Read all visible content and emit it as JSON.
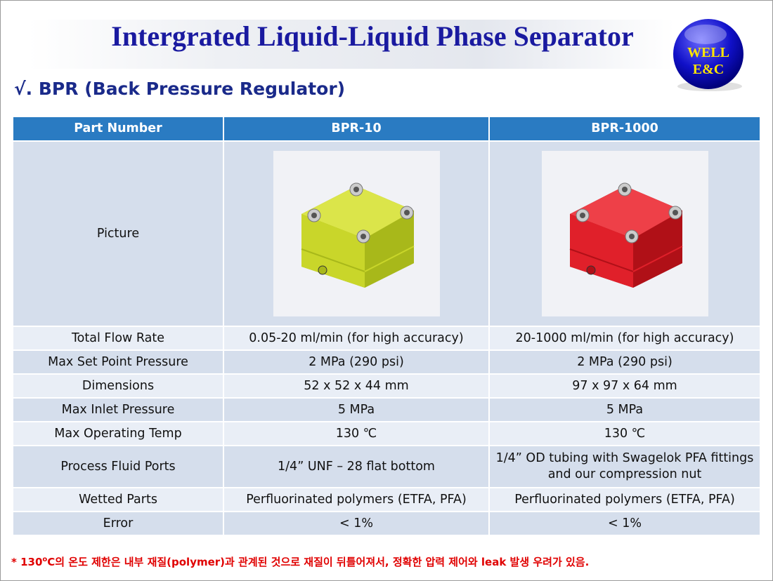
{
  "header": {
    "title": "Intergrated Liquid-Liquid Phase Separator",
    "logo": [
      "WELL",
      "E&C"
    ]
  },
  "subtitle": "√. BPR (Back Pressure Regulator)",
  "table": {
    "header": [
      "Part Number",
      "BPR-10",
      "BPR-1000"
    ],
    "picture_label": "Picture",
    "rows": [
      [
        "Total Flow Rate",
        "0.05-20 ml/min (for high accuracy)",
        "20-1000 ml/min (for high accuracy)"
      ],
      [
        "Max Set Point Pressure",
        "2 MPa (290 psi)",
        "2 MPa (290 psi)"
      ],
      [
        "Dimensions",
        "52 x 52 x 44 mm",
        "97 x 97 x 64 mm"
      ],
      [
        "Max Inlet Pressure",
        "5 MPa",
        "5 MPa"
      ],
      [
        "Max Operating Temp",
        "130 ℃",
        "130 ℃"
      ],
      [
        "Process Fluid Ports",
        "1/4” UNF – 28 flat bottom",
        "1/4” OD tubing with Swagelok PFA fittings and our compression nut"
      ],
      [
        "Wetted Parts",
        "Perfluorinated polymers (ETFA, PFA)",
        "Perfluorinated polymers (ETFA, PFA)"
      ],
      [
        "Error",
        "< 1%",
        "< 1%"
      ]
    ]
  },
  "footnote": {
    "prefix": "* 130",
    "superscript": "o",
    "text": "C의 온도 제한은 내부 재질(polymer)과 관계된 것으로 재질이 뒤틀어져서, 정확한 압력 제어와 leak 발생 우려가 있음."
  }
}
